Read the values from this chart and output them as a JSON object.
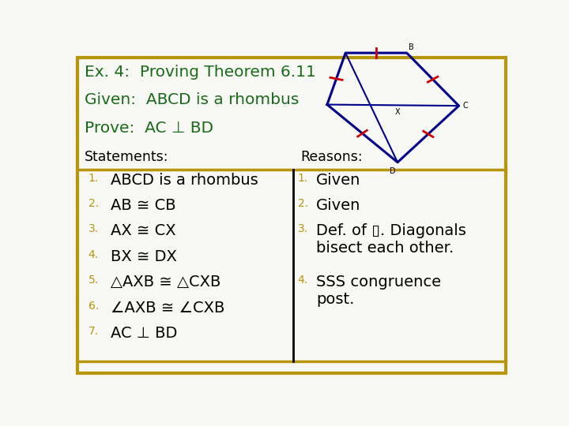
{
  "bg_color": "#f8f8f4",
  "border_color": "#b8960c",
  "title_color": "#1a6b1a",
  "header_color": "#000000",
  "statement_num_color": "#b8960c",
  "reason_num_color": "#b8960c",
  "statement_text_color": "#000000",
  "reason_text_color": "#000000",
  "title_lines": [
    "Ex. 4:  Proving Theorem 6.11",
    "Given:  ABCD is a rhombus",
    "Prove:  AC ⊥ BD"
  ],
  "statements_header": "Statements:",
  "reasons_header": "Reasons:",
  "statements": [
    "ABCD is a rhombus",
    "AB ≅ CB",
    "AX ≅ CX",
    "BX ≅ DX",
    "△AXB ≅ △CXB",
    "∠AXB ≅ ∠CXB",
    "AC ⊥ BD"
  ],
  "rhombus_color": "#00008b",
  "tick_color": "#cc0000",
  "vA": [
    0.565,
    0.935
  ],
  "vB": [
    0.655,
    1.005
  ],
  "vC": [
    0.745,
    0.935
  ],
  "vD": [
    0.655,
    0.865
  ]
}
